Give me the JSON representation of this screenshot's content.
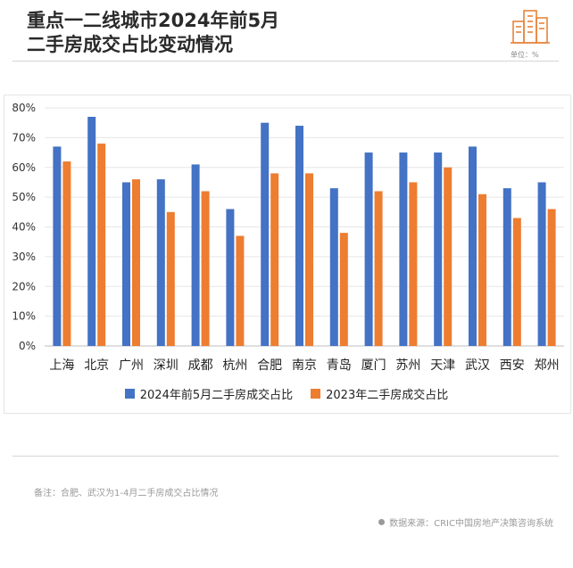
{
  "title_line1": "重点一二线城市2024年前5月",
  "title_line2": "二手房成交占比变动情况",
  "unit_label": "单位：%",
  "note": "备注：合肥、武汉为1-4月二手房成交占比情况",
  "source": "数据来源：CRIC中国房地产决策咨询系统",
  "chart_data": {
    "type": "bar",
    "categories": [
      "上海",
      "北京",
      "广州",
      "深圳",
      "成都",
      "杭州",
      "合肥",
      "南京",
      "青岛",
      "厦门",
      "苏州",
      "天津",
      "武汉",
      "西安",
      "郑州"
    ],
    "series": [
      {
        "name": "2024年前5月二手房成交占比",
        "color": "#4472c4",
        "values": [
          67,
          77,
          55,
          56,
          61,
          46,
          75,
          74,
          53,
          65,
          65,
          65,
          67,
          53,
          55
        ]
      },
      {
        "name": "2023年二手房成交占比",
        "color": "#ed7d31",
        "values": [
          62,
          68,
          56,
          45,
          52,
          37,
          58,
          58,
          38,
          52,
          55,
          60,
          51,
          43,
          46
        ]
      }
    ],
    "y_ticks": [
      "0%",
      "10%",
      "20%",
      "30%",
      "40%",
      "50%",
      "60%",
      "70%",
      "80%"
    ],
    "ylim": [
      0,
      80
    ],
    "grid": true,
    "legend_position": "bottom"
  }
}
